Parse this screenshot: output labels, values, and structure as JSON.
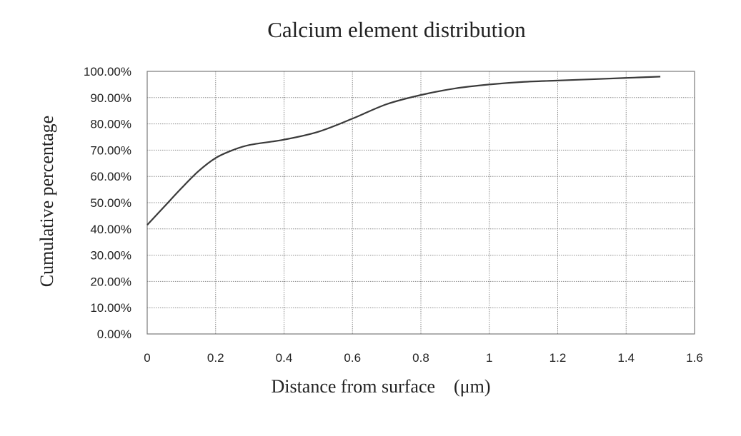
{
  "chart_data": {
    "type": "line",
    "title": "Calcium element distribution",
    "xlabel": "Distance from surface　(μm)",
    "ylabel": "Cumulative percentage",
    "xlim": [
      0,
      1.6
    ],
    "ylim": [
      0,
      100
    ],
    "x_ticks": [
      "0",
      "0.2",
      "0.4",
      "0.6",
      "0.8",
      "1",
      "1.2",
      "1.4",
      "1.6"
    ],
    "y_ticks": [
      "0.00%",
      "10.00%",
      "20.00%",
      "30.00%",
      "40.00%",
      "50.00%",
      "60.00%",
      "70.00%",
      "80.00%",
      "90.00%",
      "100.00%"
    ],
    "grid": true,
    "series": [
      {
        "x": [
          0,
          0.05,
          0.1,
          0.15,
          0.2,
          0.25,
          0.3,
          0.4,
          0.5,
          0.6,
          0.7,
          0.8,
          0.9,
          1.0,
          1.1,
          1.2,
          1.3,
          1.4,
          1.5
        ],
        "values": [
          41.5,
          48.5,
          55.5,
          62,
          67,
          70,
          72,
          74,
          77,
          82,
          87.5,
          91,
          93.5,
          95,
          96,
          96.5,
          97,
          97.5,
          98
        ]
      }
    ],
    "colors": {
      "line": "#3a3a3a",
      "grid": "#8a8a8a",
      "background": "#ffffff"
    }
  }
}
